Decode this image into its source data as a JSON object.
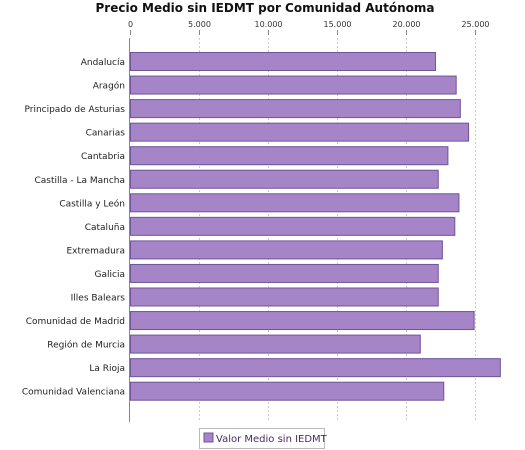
{
  "chart_data": {
    "type": "bar",
    "orientation": "horizontal",
    "title": "Precio Medio sin IEDMT por Comunidad Autónoma",
    "xlabel": "",
    "ylabel": "",
    "xlim": [
      0,
      28000
    ],
    "ticks": [
      0,
      5000,
      10000,
      15000,
      20000,
      25000
    ],
    "tick_labels": [
      "0",
      "5.000",
      "10.000",
      "15.000",
      "20.000",
      "25.000"
    ],
    "grid": "vertical dashed",
    "legend_position": "bottom",
    "bar_color": "#a585c8",
    "bar_border": "#6f549a",
    "categories": [
      "Andalucía",
      "Aragón",
      "Principado de Asturias",
      "Canarias",
      "Cantabria",
      "Castilla - La Mancha",
      "Castilla y León",
      "Cataluña",
      "Extremadura",
      "Galicia",
      "Illes Balears",
      "Comunidad de Madrid",
      "Región de Murcia",
      "La Rioja",
      "Comunidad Valenciana"
    ],
    "series": [
      {
        "name": "Valor Medio sin IEDMT",
        "values": [
          22100,
          23600,
          23900,
          24500,
          23000,
          22300,
          23800,
          23500,
          22600,
          22300,
          22300,
          24900,
          21000,
          26800,
          22700
        ]
      }
    ]
  }
}
